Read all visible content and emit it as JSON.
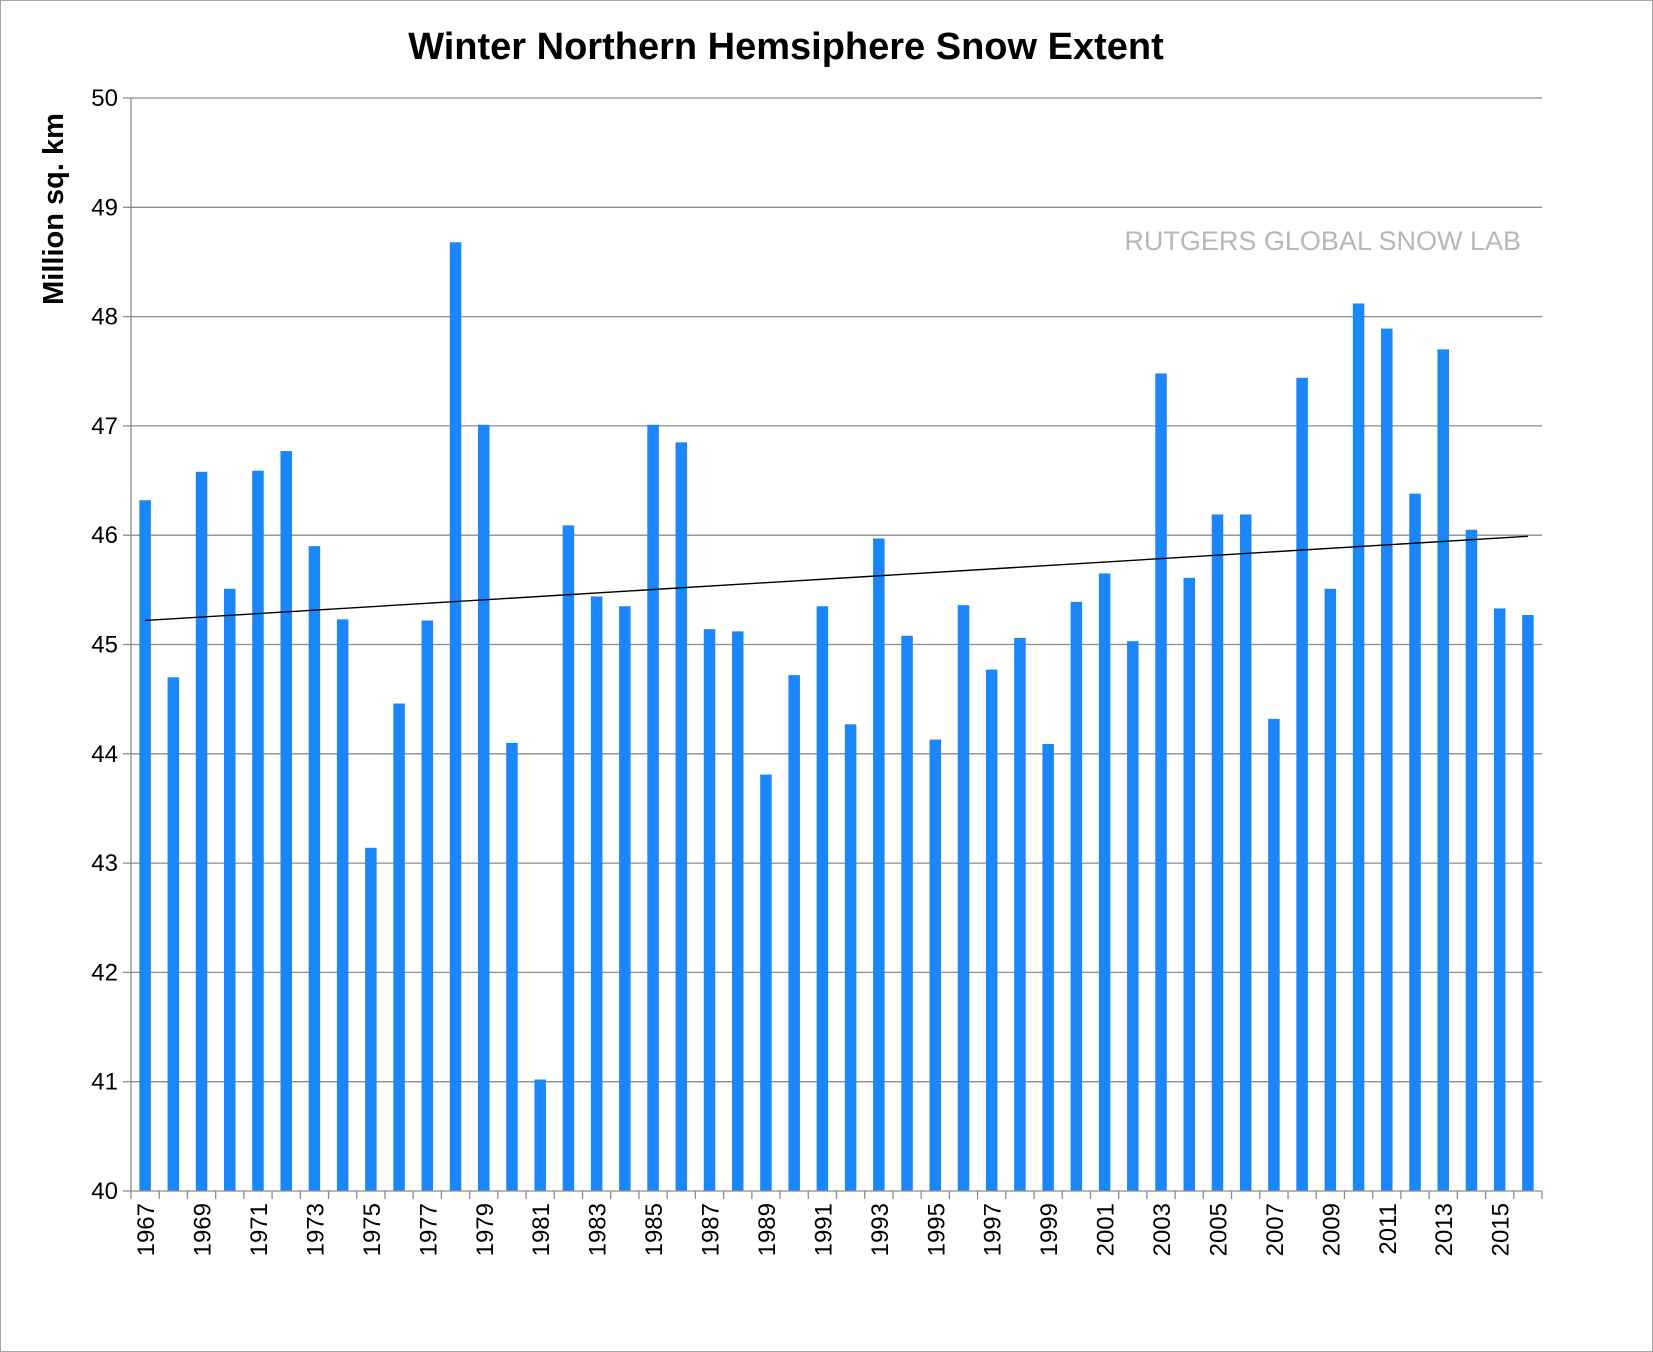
{
  "chart_data": {
    "type": "bar",
    "title": "Winter Northern Hemsiphere Snow Extent",
    "xlabel": "",
    "ylabel": "Million sq. km",
    "watermark": "RUTGERS GLOBAL SNOW LAB",
    "ylim": [
      40,
      50
    ],
    "yticks": [
      40,
      41,
      42,
      43,
      44,
      45,
      46,
      47,
      48,
      49,
      50
    ],
    "grid": true,
    "bar_color": "#1a86f8",
    "trend_color": "#000000",
    "categories": [
      1967,
      1968,
      1969,
      1970,
      1971,
      1972,
      1973,
      1974,
      1975,
      1976,
      1977,
      1978,
      1979,
      1980,
      1981,
      1982,
      1983,
      1984,
      1985,
      1986,
      1987,
      1988,
      1989,
      1990,
      1991,
      1992,
      1993,
      1994,
      1995,
      1996,
      1997,
      1998,
      1999,
      2000,
      2001,
      2002,
      2003,
      2004,
      2005,
      2006,
      2007,
      2008,
      2009,
      2010,
      2011,
      2012,
      2013,
      2014,
      2015,
      2016
    ],
    "tick_labels": [
      "1967",
      "1969",
      "1971",
      "1973",
      "1975",
      "1977",
      "1979",
      "1981",
      "1983",
      "1985",
      "1987",
      "1989",
      "1991",
      "1993",
      "1995",
      "1997",
      "1999",
      "2001",
      "2003",
      "2005",
      "2007",
      "2009",
      "2011",
      "2013",
      "2015"
    ],
    "values": [
      46.32,
      44.7,
      46.58,
      45.51,
      46.59,
      46.77,
      45.9,
      45.23,
      43.14,
      44.46,
      45.22,
      48.68,
      47.01,
      44.1,
      41.02,
      46.09,
      45.44,
      45.35,
      47.01,
      46.85,
      45.14,
      45.12,
      43.81,
      44.72,
      45.35,
      44.27,
      45.97,
      45.08,
      44.13,
      45.36,
      44.77,
      45.06,
      44.09,
      45.39,
      45.65,
      45.03,
      47.48,
      45.61,
      46.19,
      46.19,
      44.32,
      47.44,
      45.51,
      48.12,
      47.89,
      46.38,
      47.7,
      46.05,
      45.33,
      45.27
    ],
    "trendline": {
      "start": 45.22,
      "end": 45.99
    }
  }
}
